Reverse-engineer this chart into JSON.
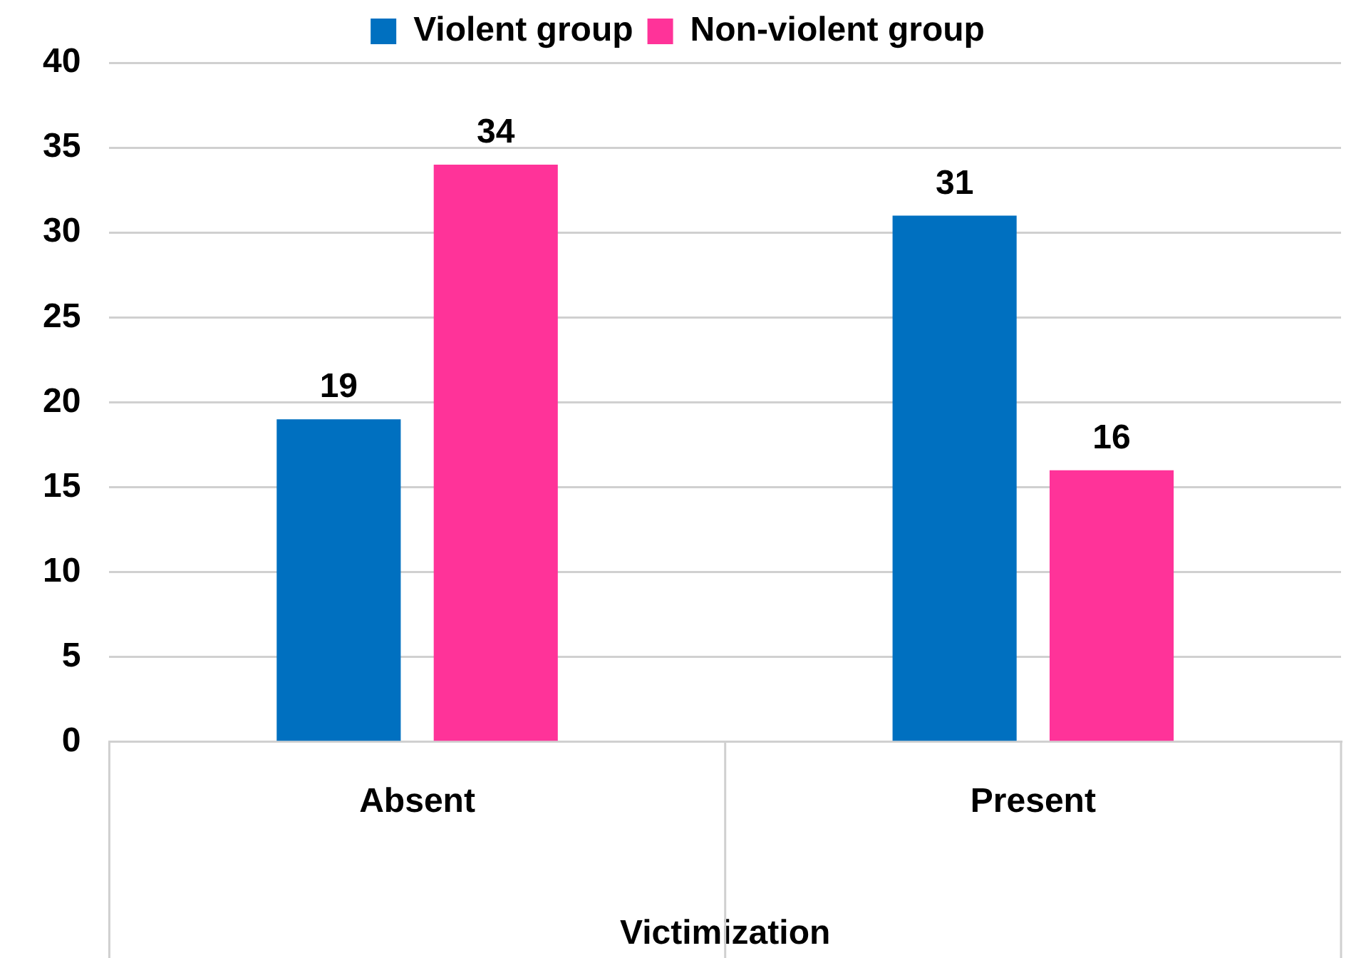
{
  "chart_data": {
    "type": "bar",
    "xlabel": "Victimization",
    "categories": [
      "Absent",
      "Present"
    ],
    "series": [
      {
        "name": "Violent group",
        "color": "#0070c0",
        "values": [
          19,
          31
        ]
      },
      {
        "name": "Non-violent group",
        "color": "#ff3399",
        "values": [
          34,
          16
        ]
      }
    ],
    "ylim": [
      0,
      40
    ],
    "yticks": [
      0,
      5,
      10,
      15,
      20,
      25,
      30,
      35,
      40
    ],
    "grid": "y",
    "legend": "top",
    "data_labels": true
  }
}
